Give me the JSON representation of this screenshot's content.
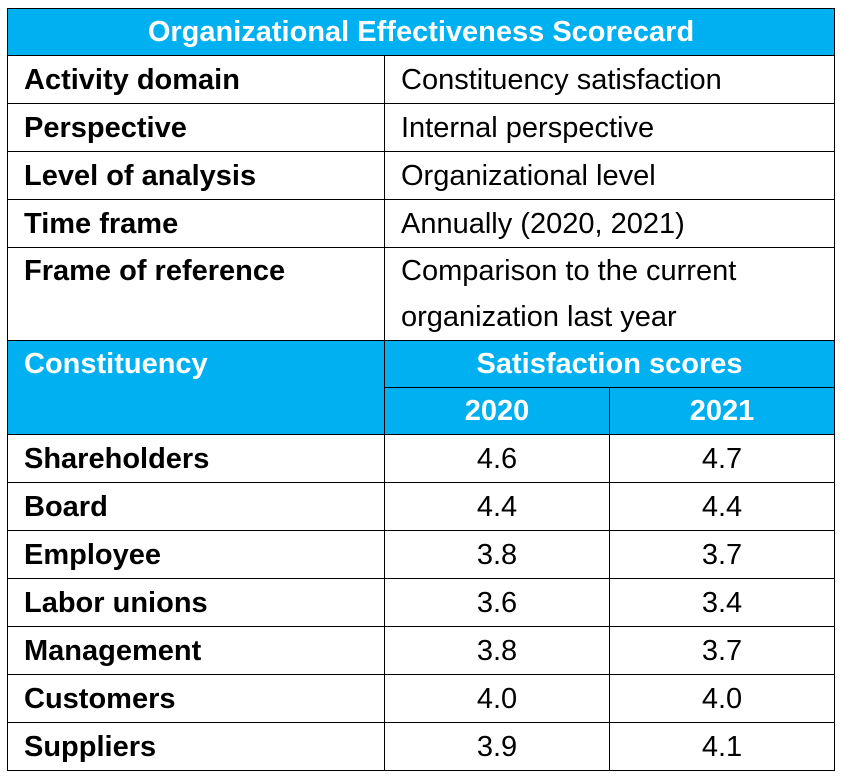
{
  "title": "Organizational Effectiveness Scorecard",
  "meta": [
    {
      "label": "Activity domain",
      "value": "Constituency satisfaction"
    },
    {
      "label": "Perspective",
      "value": "Internal perspective"
    },
    {
      "label": "Level of analysis",
      "value": "Organizational level"
    },
    {
      "label": "Time frame",
      "value": "Annually (2020, 2021)"
    },
    {
      "label": "Frame of reference",
      "value": "Comparison to the current organization last year"
    }
  ],
  "table": {
    "constituency_header": "Constituency",
    "scores_header": "Satisfaction scores",
    "years": [
      "2020",
      "2021"
    ],
    "rows": [
      {
        "name": "Shareholders",
        "y2020": "4.6",
        "y2021": "4.7"
      },
      {
        "name": "Board",
        "y2020": "4.4",
        "y2021": "4.4"
      },
      {
        "name": "Employee",
        "y2020": "3.8",
        "y2021": "3.7"
      },
      {
        "name": "Labor unions",
        "y2020": "3.6",
        "y2021": "3.4"
      },
      {
        "name": "Management",
        "y2020": "3.8",
        "y2021": "3.7"
      },
      {
        "name": "Customers",
        "y2020": "4.0",
        "y2021": "4.0"
      },
      {
        "name": "Suppliers",
        "y2020": "3.9",
        "y2021": "4.1"
      }
    ]
  },
  "colors": {
    "header_bg": "#00b0f0",
    "header_text": "#ffffff",
    "border": "#000000"
  }
}
